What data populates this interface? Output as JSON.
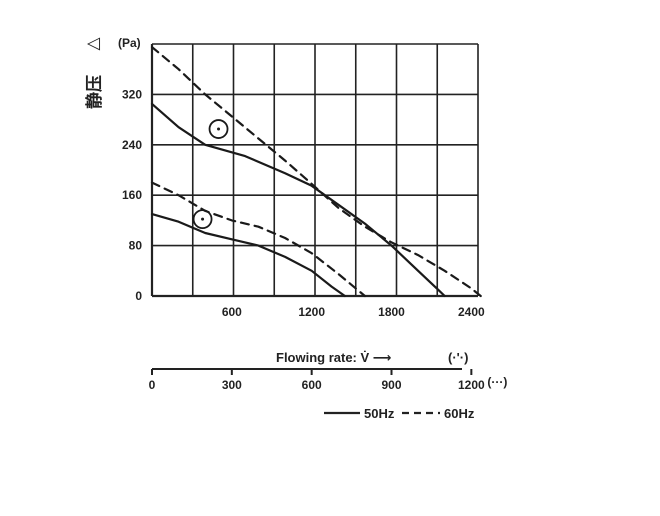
{
  "chart_data": {
    "type": "line",
    "y_label": "静压",
    "y_symbol": "△",
    "y_unit": "(Pa)",
    "ylim": [
      0,
      400
    ],
    "y_ticks": [
      0,
      80,
      160,
      240,
      320
    ],
    "x_ticks": [
      600,
      1200,
      1800,
      2400
    ],
    "xlim": [
      0,
      2450
    ],
    "x_label": "Flowing rate: V̇ ⟶",
    "x_unit": "(·'·)",
    "x2_ticks": [
      0,
      300,
      600,
      900,
      1200
    ],
    "x2_tick_suffix": "(···)",
    "x2_lim": [
      0,
      1225
    ],
    "grid": true,
    "legend": [
      {
        "label": "50Hz",
        "style": "solid"
      },
      {
        "label": "60Hz",
        "style": "dashed"
      }
    ],
    "series": [
      {
        "style": "solid",
        "x": [
          0,
          200,
          400,
          700,
          1000,
          1200,
          1400,
          1600,
          1800,
          2000,
          2150,
          2200
        ],
        "y": [
          305,
          268,
          240,
          222,
          195,
          175,
          145,
          115,
          80,
          40,
          10,
          0
        ]
      },
      {
        "style": "dashed",
        "x": [
          0,
          200,
          400,
          600,
          800,
          1000,
          1200,
          1400,
          1600,
          1800,
          2000,
          2200,
          2400,
          2470
        ],
        "y": [
          395,
          360,
          320,
          285,
          250,
          215,
          178,
          140,
          110,
          85,
          65,
          40,
          12,
          0
        ]
      },
      {
        "style": "solid",
        "x": [
          0,
          200,
          400,
          600,
          800,
          1000,
          1200,
          1350,
          1450
        ],
        "y": [
          130,
          118,
          100,
          90,
          80,
          62,
          40,
          15,
          0
        ]
      },
      {
        "style": "dashed",
        "x": [
          0,
          200,
          400,
          600,
          800,
          1000,
          1200,
          1400,
          1600
        ],
        "y": [
          180,
          160,
          135,
          120,
          110,
          92,
          68,
          35,
          0
        ]
      }
    ],
    "markers": [
      {
        "x": 500,
        "y": 265
      },
      {
        "x": 380,
        "y": 122
      }
    ]
  }
}
